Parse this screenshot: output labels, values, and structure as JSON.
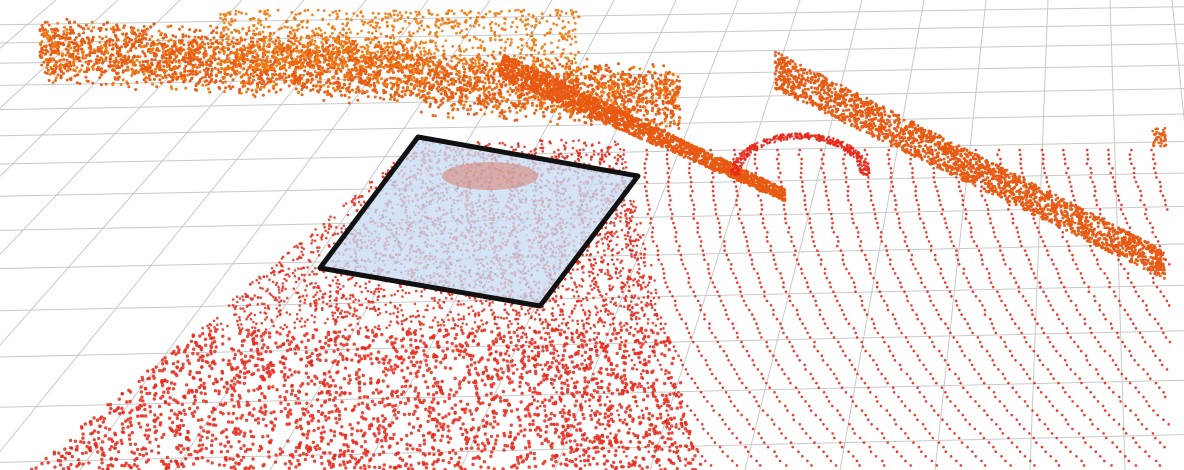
{
  "scene": {
    "description_visible_text": "",
    "colors": {
      "background": "#ffffff",
      "grid": "#c9c9c9",
      "points_near": "#e8281a",
      "points_far": "#e85a12",
      "points_top": "#f07a10",
      "selection_fill": "#c8dcf4",
      "selection_stroke": "#111111"
    },
    "layers": [
      {
        "name": "ground-grid"
      },
      {
        "name": "point-cloud-ground"
      },
      {
        "name": "point-cloud-structures"
      },
      {
        "name": "selection-patch"
      }
    ]
  }
}
